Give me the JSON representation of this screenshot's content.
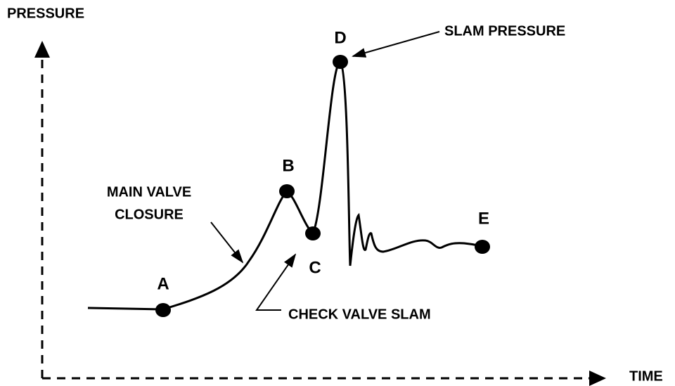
{
  "axes": {
    "y_label": "PRESSURE",
    "x_label": "TIME"
  },
  "points": [
    {
      "label": "A"
    },
    {
      "label": "B"
    },
    {
      "label": "C"
    },
    {
      "label": "D"
    },
    {
      "label": "E"
    }
  ],
  "annotations": {
    "main_valve": [
      "MAIN VALVE",
      "CLOSURE"
    ],
    "check_valve": "CHECK VALVE SLAM",
    "slam_pressure": "SLAM PRESSURE"
  }
}
